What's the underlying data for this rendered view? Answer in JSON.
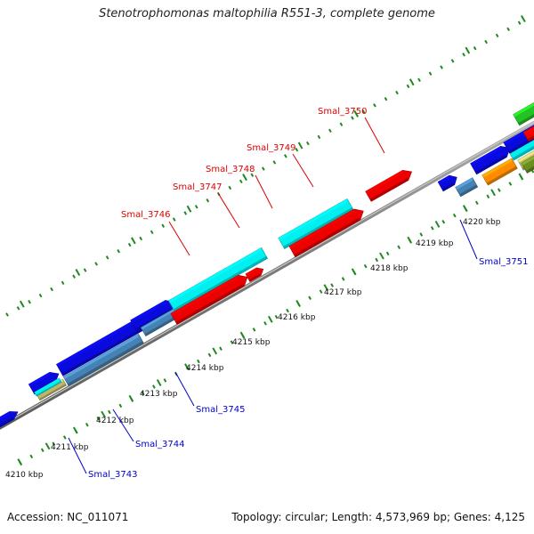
{
  "title": "Stenotrophomonas maltophilia R551-3, complete genome",
  "footer": {
    "accession": "Accession: NC_011071",
    "topology": "Topology: circular; Length: 4,573,969 bp; Genes: 4,125"
  },
  "colors": {
    "backbone": "#8c8c8c",
    "tick": "#1e8a1e",
    "label_forward": "#dd0000",
    "label_reverse": "#0000cc"
  },
  "kbp_ticks": [
    "4210 kbp",
    "4211 kbp",
    "4212 kbp",
    "4213 kbp",
    "4214 kbp",
    "4215 kbp",
    "4216 kbp",
    "4217 kbp",
    "4218 kbp",
    "4219 kbp",
    "4220 kbp"
  ],
  "gene_labels": [
    {
      "text": "Smal_3743",
      "strand": "reverse"
    },
    {
      "text": "Smal_3744",
      "strand": "reverse"
    },
    {
      "text": "Smal_3745",
      "strand": "reverse"
    },
    {
      "text": "Smal_3746",
      "strand": "forward"
    },
    {
      "text": "Smal_3747",
      "strand": "forward"
    },
    {
      "text": "Smal_3748",
      "strand": "forward"
    },
    {
      "text": "Smal_3749",
      "strand": "forward"
    },
    {
      "text": "Smal_3750",
      "strand": "forward"
    },
    {
      "text": "Smal_3751",
      "strand": "reverse"
    }
  ],
  "feature_colors": [
    "#0a0adf",
    "#ee0000",
    "#00f0f0",
    "#4682b4",
    "#ff8c00",
    "#6b8e23",
    "#bdb76b",
    "#22c322"
  ]
}
